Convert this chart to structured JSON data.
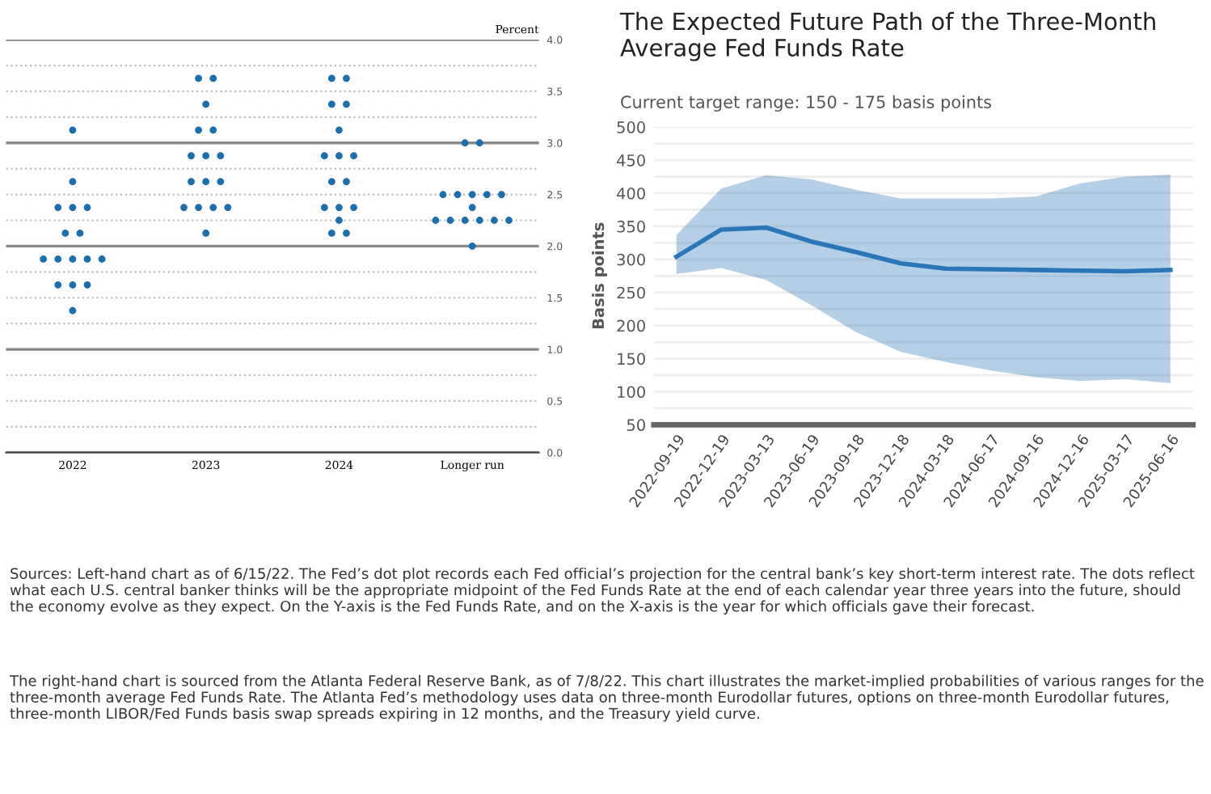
{
  "chart_data": [
    {
      "type": "scatter",
      "categories": [
        "2022",
        "2023",
        "2024",
        "Longer run"
      ],
      "ylabel": "Percent",
      "ylim": [
        0,
        4
      ],
      "yticks": [
        {
          "value": 0,
          "label": "0.0"
        },
        {
          "value": 0.25,
          "label": null
        },
        {
          "value": 0.5,
          "label": "0.5"
        },
        {
          "value": 0.75,
          "label": null
        },
        {
          "value": 1,
          "label": "1.0"
        },
        {
          "value": 1.25,
          "label": null
        },
        {
          "value": 1.5,
          "label": "1.5"
        },
        {
          "value": 1.75,
          "label": null
        },
        {
          "value": 2,
          "label": "2.0"
        },
        {
          "value": 2.25,
          "label": null
        },
        {
          "value": 2.5,
          "label": "2.5"
        },
        {
          "value": 2.75,
          "label": null
        },
        {
          "value": 3,
          "label": "3.0"
        },
        {
          "value": 3.25,
          "label": null
        },
        {
          "value": 3.5,
          "label": "3.5"
        },
        {
          "value": 3.75,
          "label": null
        },
        {
          "value": 4,
          "label": "4.0"
        }
      ],
      "grid": "y",
      "marker": "circle",
      "series": [
        {
          "color": "#1a6fae",
          "values": [
            3.125,
            3.625,
            3.625,
            3.0
          ]
        },
        {
          "color": "#1a6fae",
          "values": [
            2.625,
            3.625,
            3.625,
            3.0
          ]
        },
        {
          "color": "#1a6fae",
          "values": [
            2.375,
            3.375,
            3.375,
            2.5
          ]
        },
        {
          "color": "#1a6fae",
          "values": [
            2.375,
            3.125,
            3.375,
            2.5
          ]
        },
        {
          "color": "#1a6fae",
          "values": [
            2.375,
            3.125,
            3.125,
            2.5
          ]
        },
        {
          "color": "#1a6fae",
          "values": [
            2.125,
            2.875,
            2.875,
            2.5
          ]
        },
        {
          "color": "#1a6fae",
          "values": [
            2.125,
            2.875,
            2.875,
            2.5
          ]
        },
        {
          "color": "#1a6fae",
          "values": [
            1.875,
            2.875,
            2.875,
            2.375
          ]
        },
        {
          "color": "#1a6fae",
          "values": [
            1.875,
            2.625,
            2.625,
            2.25
          ]
        },
        {
          "color": "#1a6fae",
          "values": [
            1.875,
            2.625,
            2.625,
            2.25
          ]
        },
        {
          "color": "#1a6fae",
          "values": [
            1.875,
            2.625,
            2.375,
            2.25
          ]
        },
        {
          "color": "#1a6fae",
          "values": [
            1.875,
            2.375,
            2.375,
            2.25
          ]
        },
        {
          "color": "#1a6fae",
          "values": [
            1.625,
            2.375,
            2.375,
            2.25
          ]
        },
        {
          "color": "#1a6fae",
          "values": [
            1.625,
            2.375,
            2.25,
            2.25
          ]
        },
        {
          "color": "#1a6fae",
          "values": [
            1.625,
            2.375,
            2.125,
            2.0
          ]
        },
        {
          "color": "#1a6fae",
          "values": [
            1.375,
            2.125,
            2.125,
            null
          ]
        }
      ],
      "annotations": [
        "Sources: Left-hand chart as of 6/15/22. The Fed’s dot plot records each Fed official’s projection for the central bank’s key short-term interest rate. The dots reflect what each U.S. central banker thinks will be the appropriate midpoint of the Fed Funds Rate at the end of each calendar year three years into the future, should the economy evolve as they expect. On the Y-axis is the Fed Funds Rate, and on the X-axis is the year for which officials gave their forecast."
      ]
    },
    {
      "type": "line",
      "title": "The Expected Future Path of the Three-Month Average Fed Funds Rate",
      "subtitle": "Current target range: 150 - 175 basis points",
      "ylabel": "Basis points",
      "categories": [
        "2022-09-19",
        "2022-12-19",
        "2023-03-13",
        "2023-06-19",
        "2023-09-18",
        "2023-12-18",
        "2024-03-18",
        "2024-06-17",
        "2024-09-16",
        "2024-12-16",
        "2025-03-17",
        "2025-06-16"
      ],
      "ylim": [
        50,
        500
      ],
      "yticks": [
        50,
        {
          "value": 75,
          "label": null
        },
        100,
        {
          "value": 125,
          "label": null
        },
        150,
        {
          "value": 175,
          "label": null
        },
        200,
        {
          "value": 225,
          "label": null
        },
        250,
        {
          "value": 275,
          "label": null
        },
        300,
        {
          "value": 325,
          "label": null
        },
        350,
        {
          "value": 375,
          "label": null
        },
        400,
        {
          "value": 425,
          "label": null
        },
        450,
        {
          "value": 475,
          "label": null
        },
        500
      ],
      "grid": "y",
      "marker": "none",
      "series": [
        {
          "color": "#2a76b8",
          "values": [
            304,
            345,
            348,
            327,
            311,
            294,
            286,
            285,
            284,
            283,
            282,
            284
          ],
          "lower": [
            278,
            287,
            269,
            231,
            190,
            160,
            145,
            132,
            122,
            116,
            119,
            113
          ],
          "upper": [
            337,
            407,
            427,
            421,
            405,
            392,
            392,
            392,
            395,
            415,
            425,
            428
          ]
        }
      ],
      "annotations": [
        "The right-hand chart is sourced from the Atlanta Federal Reserve Bank, as of 7/8/22. This chart illustrates the market-implied probabilities of various ranges for the three-month average Fed Funds Rate. The Atlanta Fed’s methodology uses data on three-month Eurodollar futures, options on three-month Eurodollar futures, three-month LIBOR/Fed Funds basis swap spreads expiring in 12 months, and the Treasury yield curve."
      ]
    }
  ]
}
